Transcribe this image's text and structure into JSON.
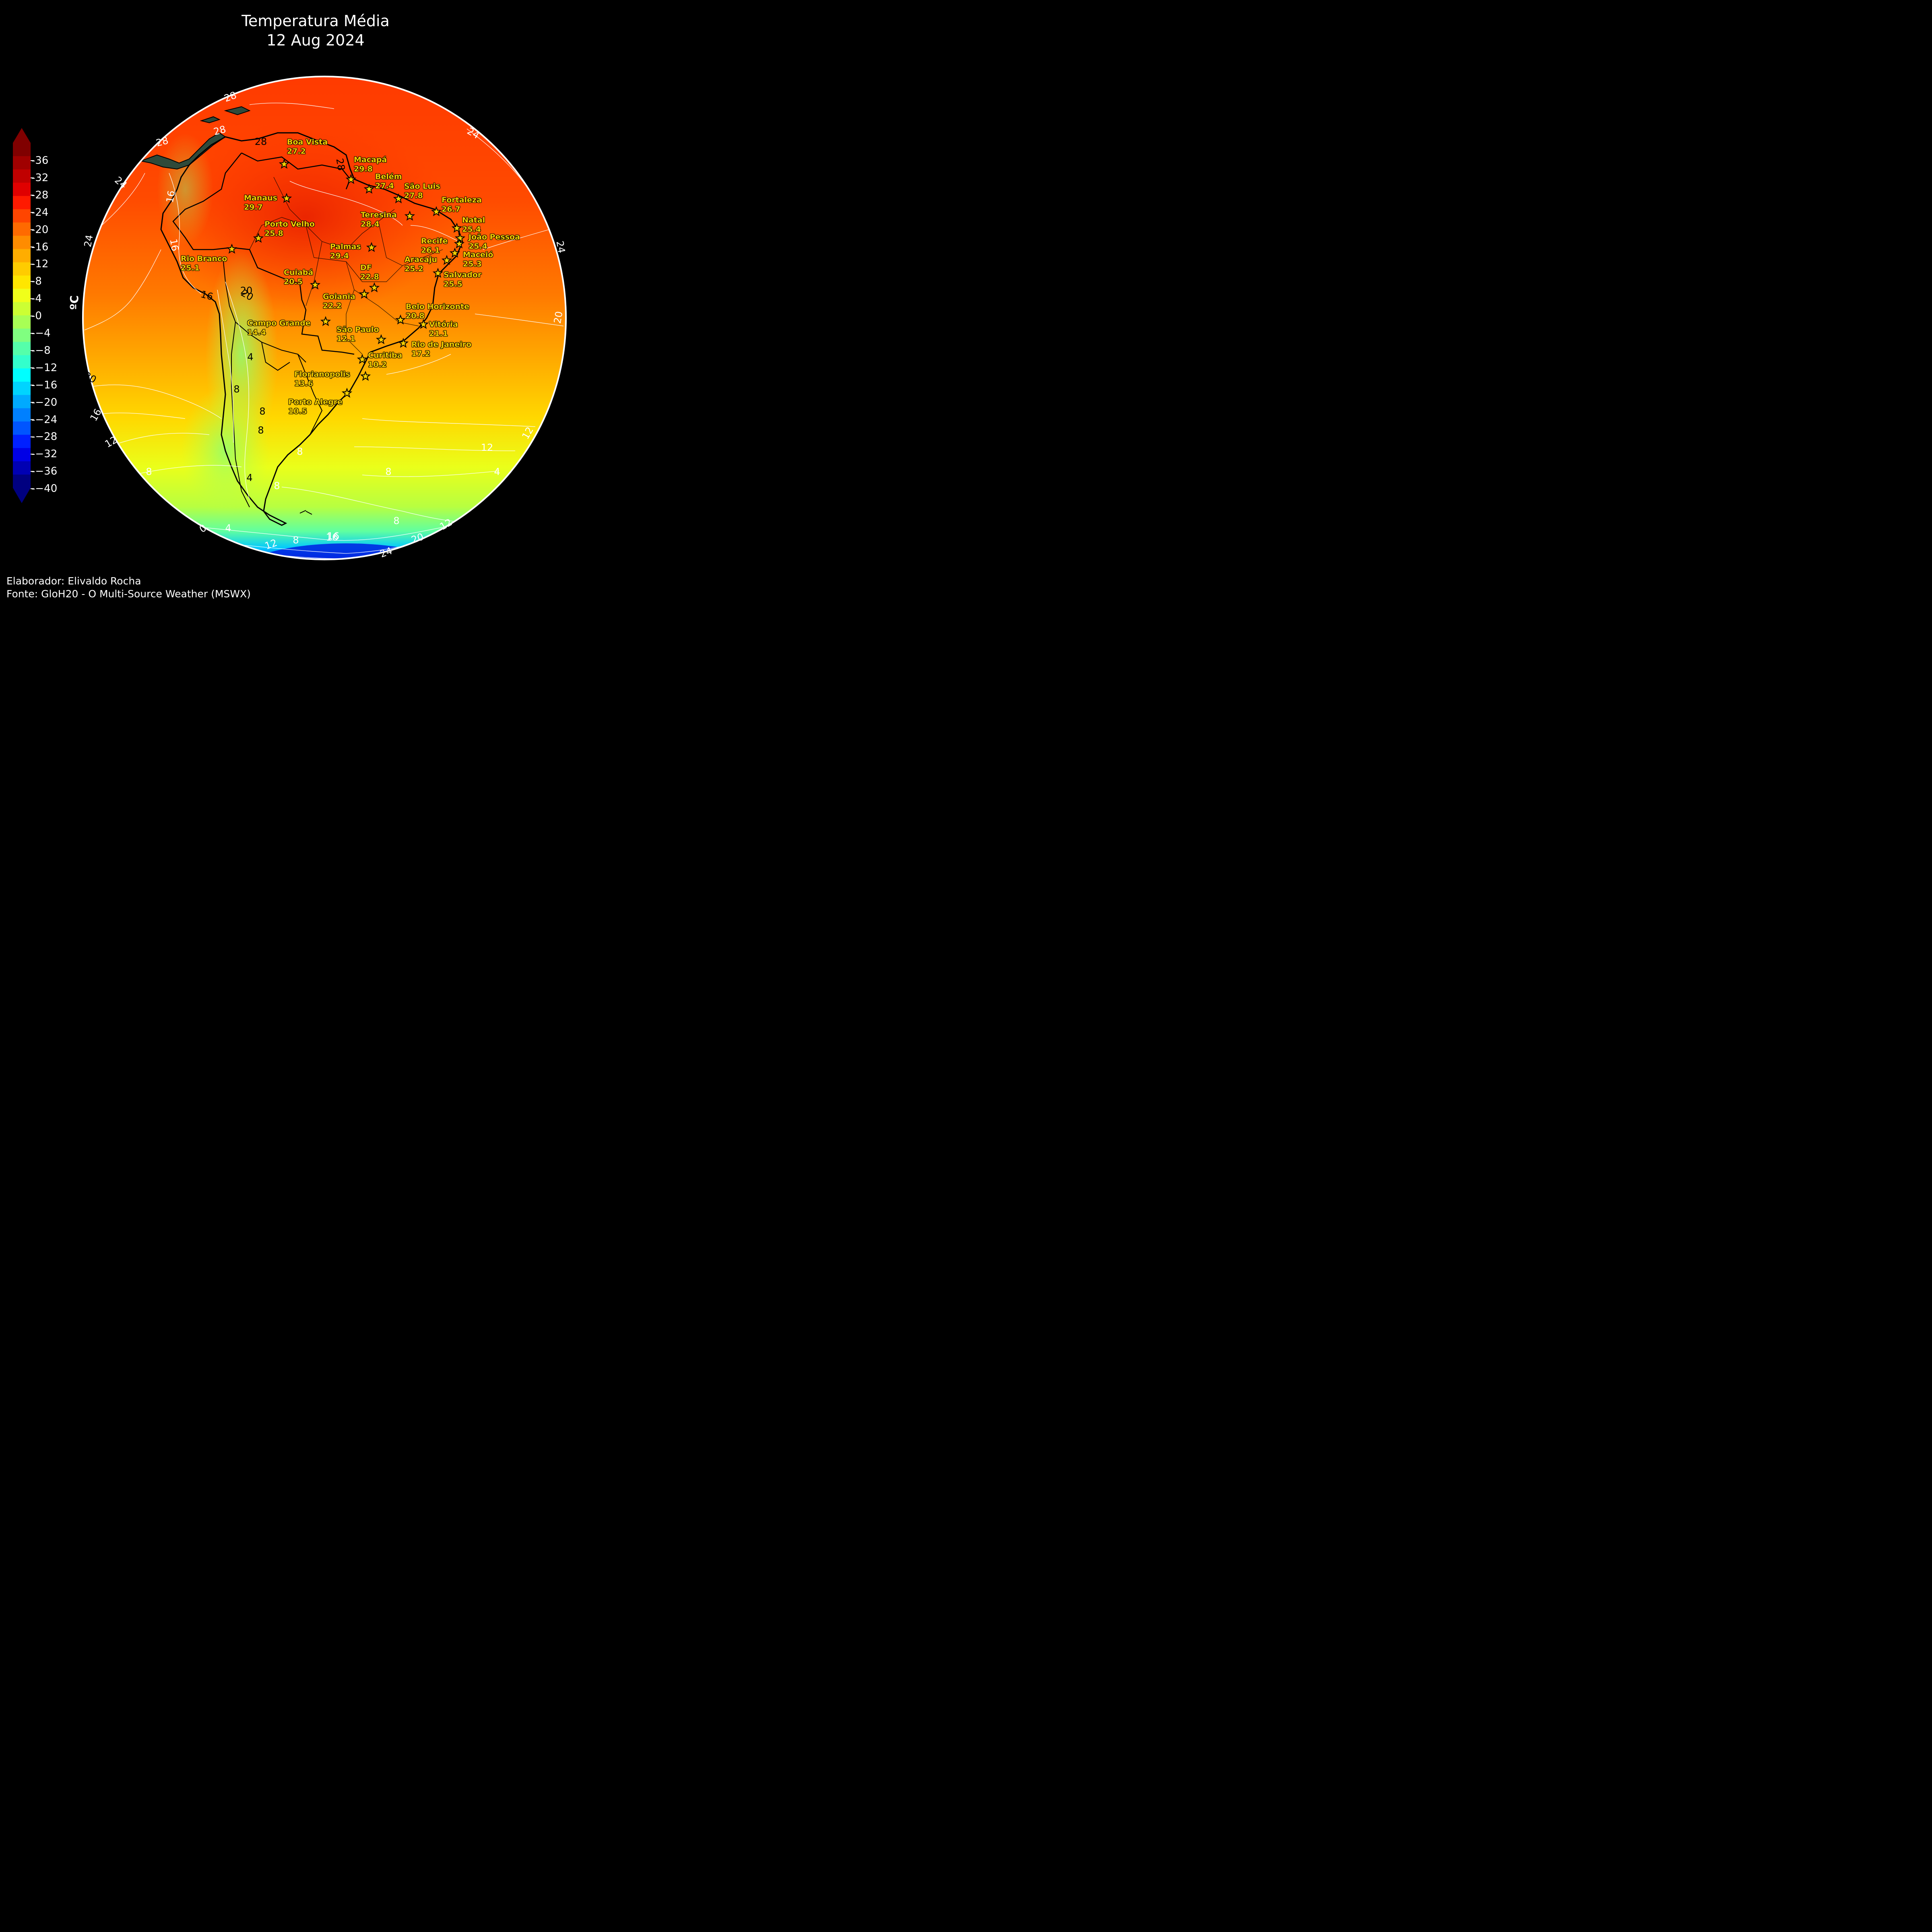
{
  "title": {
    "line1": "Temperatura Média",
    "line2": "12 Aug 2024"
  },
  "credits": {
    "author": "Elaborador: Elivaldo Rocha",
    "source": "Fonte: GloH20 - O Multi-Source Weather (MSWX)"
  },
  "colorbar": {
    "unit": "ºC",
    "ticks": [
      "36",
      "32",
      "28",
      "24",
      "20",
      "16",
      "12",
      "8",
      "4",
      "0",
      "−4",
      "−8",
      "−12",
      "−16",
      "−20",
      "−24",
      "−28",
      "−32",
      "−36",
      "−40"
    ],
    "colors": [
      "#800000",
      "#a00000",
      "#c00000",
      "#e00000",
      "#ff1a00",
      "#ff4500",
      "#ff6a00",
      "#ff8c00",
      "#ffad00",
      "#ffcc00",
      "#ffe600",
      "#f0ff1a",
      "#ccff33",
      "#a8ff55",
      "#80ff80",
      "#55ffaa",
      "#33ffcc",
      "#00ffff",
      "#00d4ff",
      "#00aaff",
      "#0080ff",
      "#0055ff",
      "#0020ff",
      "#0000e6",
      "#0000b3",
      "#000080"
    ]
  },
  "cities": [
    {
      "name": "Boa Vista",
      "value": "27.2"
    },
    {
      "name": "Macapá",
      "value": "29.8"
    },
    {
      "name": "Belém",
      "value": "27.4"
    },
    {
      "name": "São Luis",
      "value": "27.8"
    },
    {
      "name": "Manaus",
      "value": "29.7"
    },
    {
      "name": "Fortaleza",
      "value": "26.7"
    },
    {
      "name": "Teresina",
      "value": "28.4"
    },
    {
      "name": "Natal",
      "value": "25.4"
    },
    {
      "name": "Porto Velho",
      "value": "25.8"
    },
    {
      "name": "João Pessoa",
      "value": "25.4"
    },
    {
      "name": "Recife",
      "value": "26.1"
    },
    {
      "name": "Palmas",
      "value": "29.4"
    },
    {
      "name": "Maceió",
      "value": "25.3"
    },
    {
      "name": "Rio Branco",
      "value": "25.1"
    },
    {
      "name": "Aracaju",
      "value": "25.2"
    },
    {
      "name": "DF",
      "value": "22.8"
    },
    {
      "name": "Cuiabá",
      "value": "20.5"
    },
    {
      "name": "Salvador",
      "value": "25.5"
    },
    {
      "name": "Goiania",
      "value": "22.2"
    },
    {
      "name": "Belo Horizonte",
      "value": "20.8"
    },
    {
      "name": "Campo Grande",
      "value": "14.4"
    },
    {
      "name": "Vitória",
      "value": "21.1"
    },
    {
      "name": "São Paulo",
      "value": "12.1"
    },
    {
      "name": "Rio de Janeiro",
      "value": "17.2"
    },
    {
      "name": "Curitiba",
      "value": "10.2"
    },
    {
      "name": "Florianopolis",
      "value": "13.6"
    },
    {
      "name": "Porto Alegre",
      "value": "10.5"
    }
  ],
  "contour_labels": [
    "28",
    "28",
    "28",
    "24",
    "24",
    "24",
    "20",
    "20",
    "16",
    "16",
    "12",
    "12",
    "8",
    "8",
    "4",
    "0",
    "20",
    "24",
    "28",
    "16",
    "12",
    "4",
    "8",
    "16",
    "20",
    "24",
    "28",
    "20",
    "16",
    "12",
    "8",
    "4",
    "8",
    "12",
    "16",
    "8",
    "4",
    "8",
    "8",
    "8"
  ]
}
